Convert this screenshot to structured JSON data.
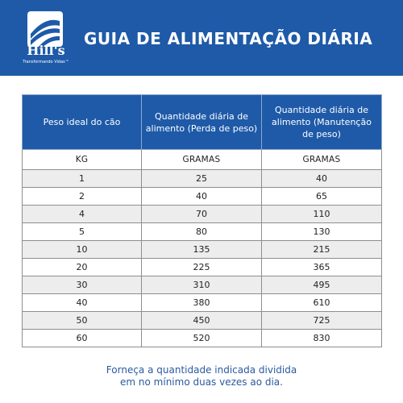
{
  "brand": {
    "name": "Hill's",
    "tagline": "Transformando Vidas™"
  },
  "header": {
    "title": "GUIA DE ALIMENTAÇÃO DIÁRIA"
  },
  "table": {
    "headers": [
      "Peso ideal do cão",
      "Quantidade diária de alimento (Perda de peso)",
      "Quantidade diária de alimento (Manutenção de peso)"
    ],
    "units": [
      "KG",
      "GRAMAS",
      "GRAMAS"
    ],
    "rows": [
      [
        "1",
        "25",
        "40"
      ],
      [
        "2",
        "40",
        "65"
      ],
      [
        "4",
        "70",
        "110"
      ],
      [
        "5",
        "80",
        "130"
      ],
      [
        "10",
        "135",
        "215"
      ],
      [
        "20",
        "225",
        "365"
      ],
      [
        "30",
        "310",
        "495"
      ],
      [
        "40",
        "380",
        "610"
      ],
      [
        "50",
        "450",
        "725"
      ],
      [
        "60",
        "520",
        "830"
      ]
    ]
  },
  "footer": {
    "note_line1": "Forneça a quantidade indicada dividida",
    "note_line2": "em no mínimo duas vezes ao dia."
  },
  "colors": {
    "brand_blue": "#1e5aa8",
    "row_alt": "#ededed",
    "note_text": "#2a5aa0"
  }
}
